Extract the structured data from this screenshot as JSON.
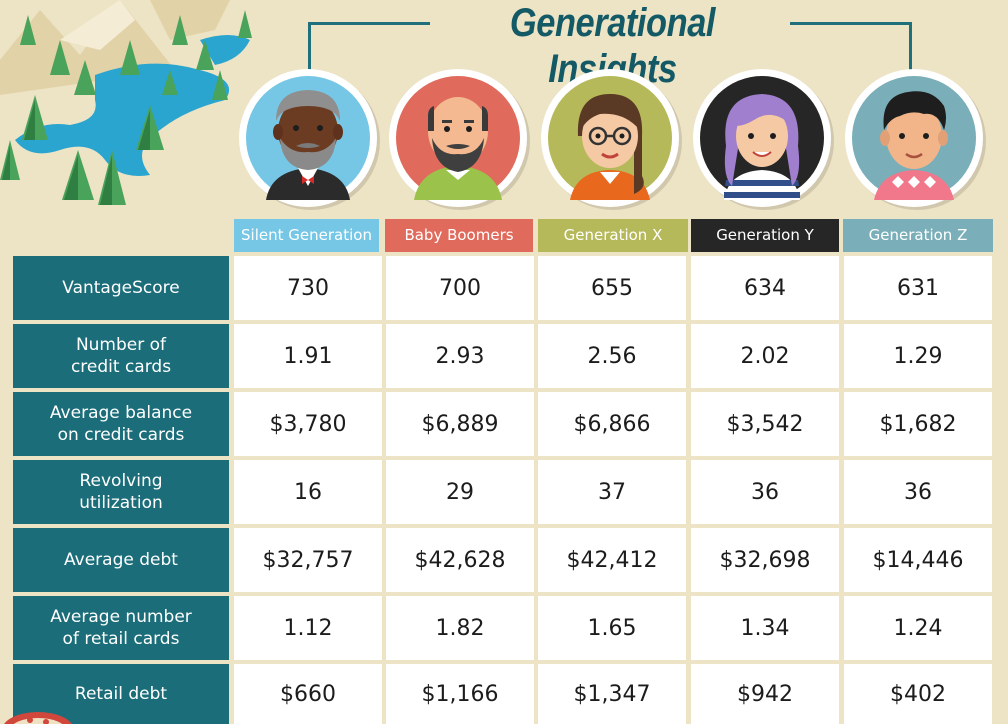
{
  "title": "Generational Insights",
  "colors": {
    "background": "#ede3c5",
    "teal": "#1a6d79",
    "silent": "#76c7e6",
    "boomers": "#e06a5c",
    "genx": "#b6b95a",
    "geny": "#262626",
    "genz": "#7aafb9"
  },
  "generations": [
    {
      "name": "Silent Generation",
      "color": "#76c7e6"
    },
    {
      "name": "Baby Boomers",
      "color": "#e06a5c"
    },
    {
      "name": "Generation X",
      "color": "#b6b95a"
    },
    {
      "name": "Generation Y",
      "color": "#262626"
    },
    {
      "name": "Generation Z",
      "color": "#7aafb9"
    }
  ],
  "avatars": [
    "older-man-avatar-icon",
    "bald-bearded-man-avatar-icon",
    "woman-with-glasses-avatar-icon",
    "purple-haired-woman-avatar-icon",
    "young-man-avatar-icon"
  ],
  "rows": [
    {
      "label": "VantageScore",
      "values": [
        "730",
        "700",
        "655",
        "634",
        "631"
      ]
    },
    {
      "label": "Number of\ncredit cards",
      "values": [
        "1.91",
        "2.93",
        "2.56",
        "2.02",
        "1.29"
      ]
    },
    {
      "label": "Average balance\non credit cards",
      "values": [
        "$3,780",
        "$6,889",
        "$6,866",
        "$3,542",
        "$1,682"
      ]
    },
    {
      "label": "Revolving\nutilization",
      "values": [
        "16",
        "29",
        "37",
        "36",
        "36"
      ]
    },
    {
      "label": "Average debt",
      "values": [
        "$32,757",
        "$42,628",
        "$42,412",
        "$32,698",
        "$14,446"
      ]
    },
    {
      "label": "Average number\nof retail cards",
      "values": [
        "1.12",
        "1.82",
        "1.65",
        "1.34",
        "1.24"
      ]
    },
    {
      "label": "Retail debt",
      "values": [
        "$660",
        "$1,166",
        "$1,347",
        "$942",
        "$402"
      ]
    }
  ]
}
